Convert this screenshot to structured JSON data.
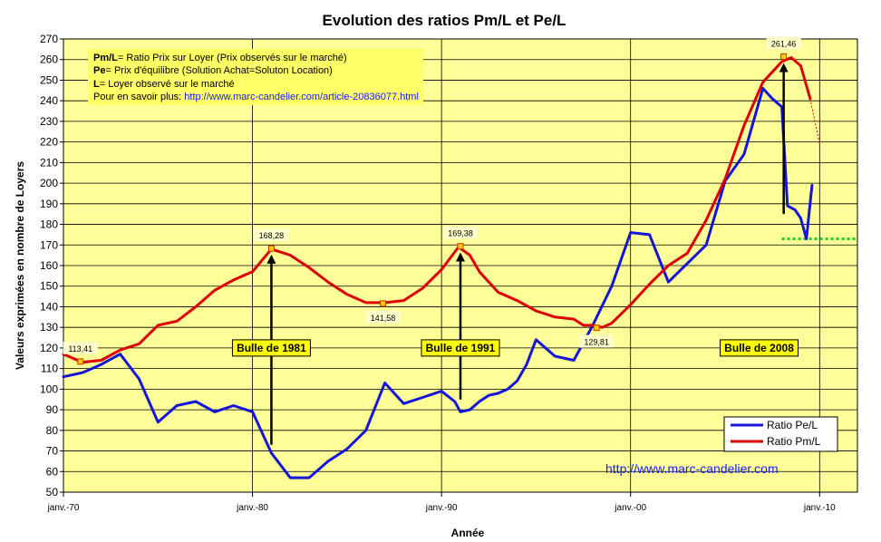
{
  "chart_data": {
    "type": "line",
    "title": "Evolution des ratios Pm/L et Pe/L",
    "xlabel": "Année",
    "ylabel": "Valeurs exprimées en nombre de Loyers",
    "xlim": [
      1970,
      2012
    ],
    "ylim": [
      50,
      270
    ],
    "x_tick_labels": [
      "janv.-70",
      "janv.-80",
      "janv.-90",
      "janv.-00",
      "janv.-10"
    ],
    "x_tick_values": [
      1970,
      1980,
      1990,
      2000,
      2010
    ],
    "y_ticks": [
      50,
      60,
      70,
      80,
      90,
      100,
      110,
      120,
      130,
      140,
      150,
      160,
      170,
      180,
      190,
      200,
      210,
      220,
      230,
      240,
      250,
      260,
      270
    ],
    "grid": true,
    "legend_position": "bottom-right",
    "series": [
      {
        "name": "Ratio Pe/L",
        "color": "#1515d9",
        "x": [
          1970,
          1971,
          1972,
          1973,
          1974,
          1975,
          1976,
          1977,
          1978,
          1979,
          1980,
          1981,
          1982,
          1983,
          1984,
          1985,
          1986,
          1987,
          1988,
          1989,
          1990,
          1990.7,
          1991,
          1991.5,
          1992,
          1992.5,
          1993,
          1993.5,
          1994,
          1994.5,
          1995,
          1996,
          1997,
          1998,
          1999,
          2000,
          2001,
          2002,
          2003,
          2004,
          2005,
          2006,
          2007,
          2007.5,
          2008,
          2008.3,
          2008.7,
          2009,
          2009.3,
          2009.6
        ],
        "y": [
          106,
          108,
          112,
          117,
          105,
          84,
          92,
          94,
          89,
          92,
          89,
          69,
          57,
          57,
          65,
          71,
          80,
          103,
          93,
          96,
          99,
          94,
          89,
          90,
          94,
          97,
          98,
          100,
          104,
          112,
          124,
          116,
          114,
          131,
          150,
          176,
          175,
          152,
          161,
          170,
          201,
          214,
          246,
          241,
          237,
          189,
          187,
          183,
          173,
          199
        ]
      },
      {
        "name": "Ratio Pm/L",
        "color": "#dd0000",
        "x": [
          1970,
          1971,
          1972,
          1973,
          1974,
          1975,
          1976,
          1977,
          1978,
          1979,
          1980,
          1981,
          1982,
          1983,
          1984,
          1985,
          1986,
          1987,
          1988,
          1989,
          1990,
          1990.9,
          1991.5,
          1992,
          1993,
          1994,
          1995,
          1996,
          1997,
          1997.5,
          1998,
          1998.5,
          1999,
          2000,
          2001,
          2002,
          2003,
          2004,
          2005,
          2006,
          2007,
          2008,
          2008.5,
          2009,
          2009.5
        ],
        "y": [
          117,
          113,
          114,
          119,
          122,
          131,
          133,
          140,
          148,
          153,
          157,
          168,
          165,
          159,
          152,
          146,
          142,
          142,
          143,
          149,
          158,
          169,
          165,
          157,
          147,
          143,
          138,
          135,
          134,
          131,
          131,
          130,
          132,
          141,
          151,
          160,
          166,
          182,
          202,
          228,
          249,
          259,
          261,
          257,
          241
        ],
        "projection": {
          "x": [
            2009.5,
            2010
          ],
          "y": [
            241,
            219
          ]
        }
      }
    ],
    "reference_line": {
      "y": 173,
      "x_from": 2008,
      "x_to": 2012,
      "color": "#22cc22"
    },
    "peak_labels": [
      {
        "text": "113,41",
        "x": 1970.9,
        "y": 113.41,
        "below": false
      },
      {
        "text": "168,28",
        "x": 1981,
        "y": 168.28,
        "below": false
      },
      {
        "text": "141,58",
        "x": 1986.9,
        "y": 141.58,
        "below": true
      },
      {
        "text": "169,38",
        "x": 1991,
        "y": 169.38,
        "below": false
      },
      {
        "text": "129,81",
        "x": 1998.2,
        "y": 129.81,
        "below": true
      },
      {
        "text": "261,46",
        "x": 2008.1,
        "y": 261.46,
        "below": false
      }
    ],
    "bubbles": [
      {
        "text": "Bulle de 1981",
        "x": 1981,
        "y": 120
      },
      {
        "text": "Bulle de 1991",
        "x": 1991,
        "y": 120
      },
      {
        "text": "Bulle de 2008",
        "x": 2006.8,
        "y": 120
      }
    ],
    "arrows": [
      {
        "x": 1981,
        "y_from": 73,
        "y_to": 168
      },
      {
        "x": 1991,
        "y_from": 95,
        "y_to": 169
      },
      {
        "x": 2008.1,
        "y_from": 185,
        "y_to": 261
      }
    ],
    "info_box": {
      "lines": [
        {
          "bold": "Pm/L",
          "text": "= Ratio Prix sur Loyer (Prix observés sur le marché)"
        },
        {
          "bold": "Pe",
          "text": "= Prix d'équilibre (Solution Achat=Soluton Location)"
        },
        {
          "bold": "L",
          "text": "= Loyer observé sur le marché"
        },
        {
          "bold": "",
          "text": "Pour en savoir plus: "
        }
      ],
      "link": "http://www.marc-candelier.com/article-20836077.html"
    },
    "watermark": "http://www.marc-candelier.com"
  }
}
